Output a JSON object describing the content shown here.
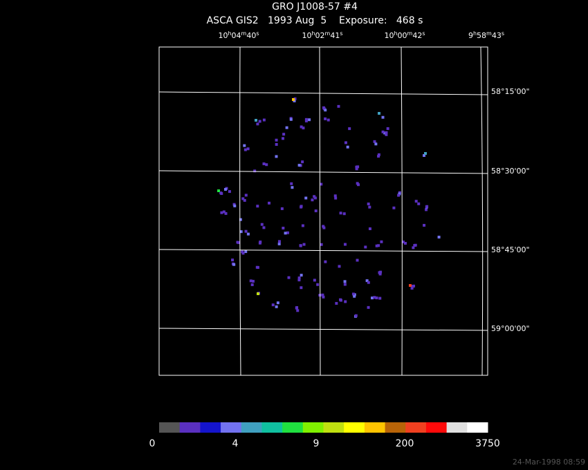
{
  "header": {
    "title": "GRO J1008-57 #4",
    "subtitle": "ASCA GIS2   1993 Aug  5    Exposure:   468 s"
  },
  "ra_labels": [
    [
      "10",
      "h",
      "04",
      "m",
      "40",
      "s"
    ],
    [
      "10",
      "h",
      "02",
      "m",
      "41",
      "s"
    ],
    [
      "10",
      "h",
      "00",
      "m",
      "42",
      "s"
    ],
    [
      "9",
      "h",
      "58",
      "m",
      "43",
      "s"
    ]
  ],
  "dec_labels": [
    "58°15'00\"",
    "58°30'00\"",
    "58°45'00\"",
    "59°00'00\""
  ],
  "colorbar": {
    "colors": [
      "#555555",
      "#5a30c0",
      "#1414cc",
      "#7272f0",
      "#40a0c0",
      "#10c0a0",
      "#20e040",
      "#80f000",
      "#c0e010",
      "#ffff00",
      "#ffc400",
      "#b86408",
      "#f04020",
      "#ff0a0a",
      "#e0e0e0",
      "#ffffff"
    ],
    "labels": [
      "0",
      "4",
      "9",
      "200",
      "3750"
    ]
  },
  "footer": "24-Mar-1998 08:59"
}
